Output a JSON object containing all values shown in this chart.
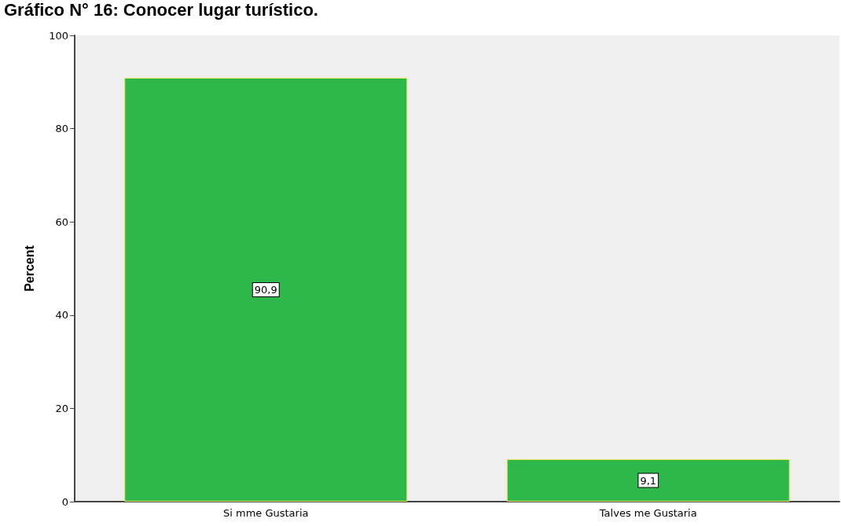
{
  "chart_data": {
    "type": "bar",
    "title": "Gráfico N° 16: Conocer lugar turístico.",
    "ylabel": "Percent",
    "categories": [
      "Si mme Gustaria",
      "Talves me Gustaria"
    ],
    "values": [
      90.9,
      9.1
    ],
    "value_labels": [
      "90,9",
      "9,1"
    ],
    "color": "#2eb84b",
    "ylim": [
      0,
      100
    ],
    "yticks": [
      0,
      20,
      40,
      60,
      80,
      100
    ],
    "grid": false
  }
}
